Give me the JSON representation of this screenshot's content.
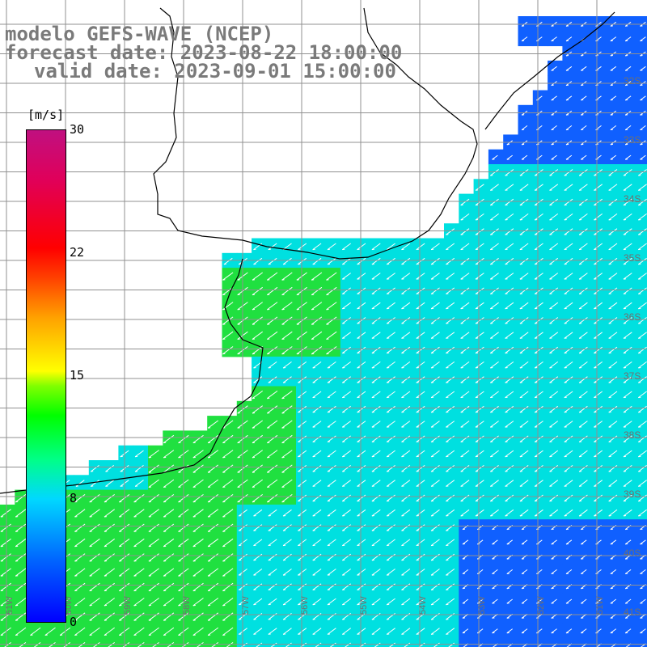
{
  "header": {
    "line1": "modelo GEFS-WAVE (NCEP)",
    "line2": "forecast date: 2023-08-22 18:00:00",
    "line3": "valid date: 2023-09-01 15:00:00"
  },
  "colorbar": {
    "unit": "[m/s]",
    "ticks": [
      "30",
      "22",
      "15",
      "8",
      "0"
    ],
    "colors": [
      "#0000ff",
      "#00d8ff",
      "#00ff00",
      "#ffff00",
      "#ff0000",
      "#c01080"
    ]
  },
  "map": {
    "lat_labels": [
      "32S",
      "33S",
      "34S",
      "35S",
      "36S",
      "37S",
      "38S",
      "39S",
      "40S",
      "41S"
    ],
    "lon_labels": [
      "61W",
      "60W",
      "59W",
      "58W",
      "57W",
      "56W",
      "55W",
      "54W",
      "53W",
      "52W",
      "51W"
    ],
    "field": "wind speed",
    "vector_direction": "towards southwest",
    "ocean_colors": {
      "strong": "#20e040",
      "moderate": "#00e0e0",
      "weak": "#1060ff"
    },
    "land_color": "#ffffff",
    "grid_color": "#909090",
    "coast_color": "#000000"
  }
}
